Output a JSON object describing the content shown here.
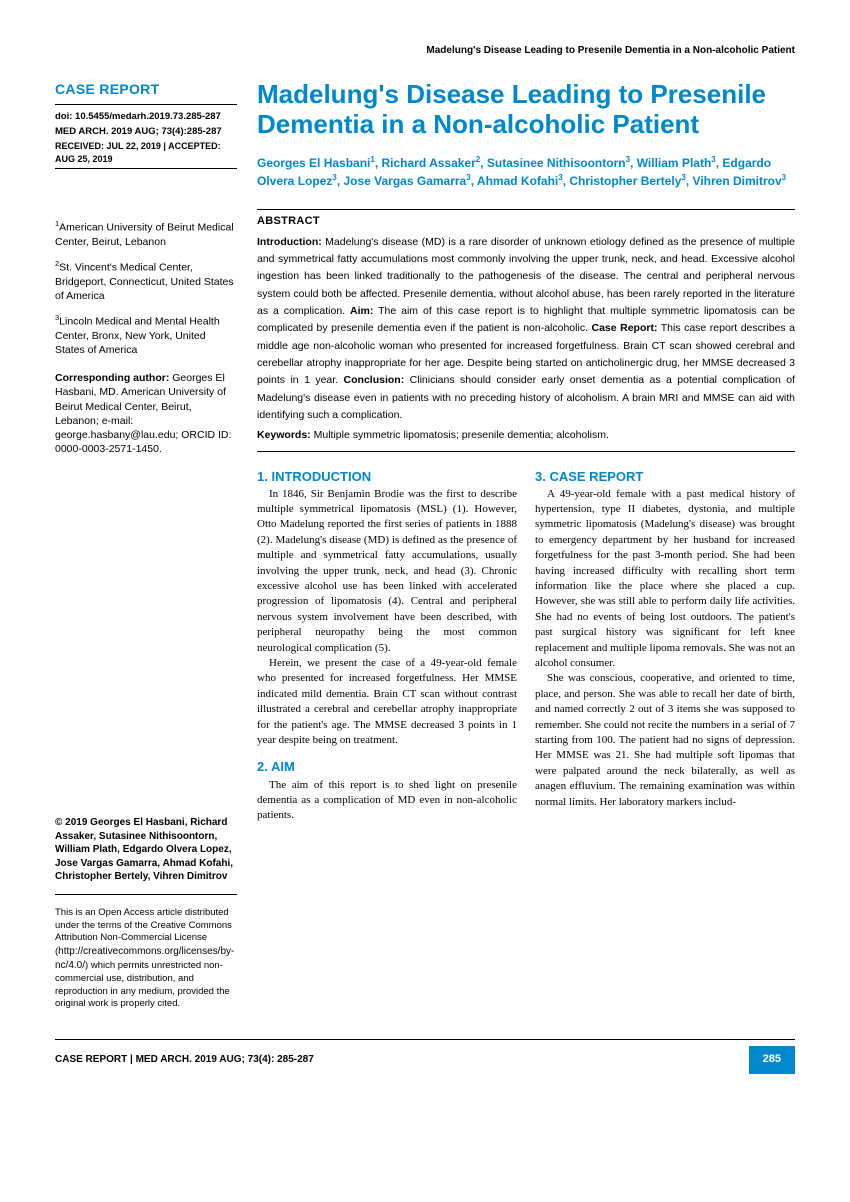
{
  "colors": {
    "accent": "#0088cc",
    "text": "#000000",
    "bg": "#ffffff"
  },
  "runningHead": "Madelung's Disease Leading to Presenile Dementia in a Non-alcoholic Patient",
  "sidebar": {
    "label": "CASE REPORT",
    "doi": "doi: 10.5455/medarh.2019.73.285-287",
    "pubinfo": "MED ARCH. 2019 AUG; 73(4):285-287",
    "dates": "RECEIVED: JUL 22, 2019 | ACCEPTED: AUG 25, 2019",
    "affiliations": [
      {
        "num": "1",
        "text": "American University of Beirut Medical Center, Beirut, Lebanon"
      },
      {
        "num": "2",
        "text": "St. Vincent's Medical Center, Bridgeport, Connecticut, United States of America"
      },
      {
        "num": "3",
        "text": "Lincoln Medical and Mental Health Center, Bronx, New York, United States of America"
      }
    ],
    "corresponding": {
      "label": "Corresponding author:",
      "text": " Georges El Hasbani, MD. American University of Beirut Medical Center, Beirut, Lebanon; e-mail: george.hasbany@lau.edu; ORCID ID: 0000-0003-2571-1450."
    },
    "copyright": "© 2019 Georges El Hasbani, Richard Assaker, Sutasinee Nithisoontorn, William Plath, Edgardo Olvera Lopez, Jose Vargas Gamarra, Ahmad Kofahi, Christopher Bertely, Vihren Dimitrov",
    "licensePre": "This is an Open Access article distributed under the terms of the Creative Commons Attribution Non-Commercial License (",
    "licenseUrl": "http://creativecommons.org/licenses/by-nc/4.0/",
    "licensePost": ") which permits unrestricted non-commercial use, distribution, and reproduction in any medium, provided the original work is properly cited."
  },
  "title": "Madelung's Disease Leading to Presenile Dementia in a Non-alcoholic Patient",
  "authorsHtmlParts": [
    {
      "name": "Georges El Hasbani",
      "sup": "1"
    },
    {
      "name": "Richard Assaker",
      "sup": "2"
    },
    {
      "name": "Sutasinee Nithisoontorn",
      "sup": "3"
    },
    {
      "name": "William Plath",
      "sup": "3"
    },
    {
      "name": "Edgardo Olvera Lopez",
      "sup": "3"
    },
    {
      "name": "Jose Vargas Gamarra",
      "sup": "3"
    },
    {
      "name": "Ahmad Kofahi",
      "sup": "3"
    },
    {
      "name": "Christopher Bertely",
      "sup": "3"
    },
    {
      "name": "Vihren Dimitrov",
      "sup": "3"
    }
  ],
  "abstract": {
    "heading": "ABSTRACT",
    "segments": [
      {
        "lead": "Introduction:",
        "text": " Madelung's disease (MD) is a rare disorder of unknown etiology defined as the presence of multiple and symmetrical fatty accumulations most commonly involving the upper trunk, neck, and head. Excessive alcohol ingestion has been linked traditionally to the pathogenesis of the disease. The central and peripheral nervous system could both be affected. Presenile dementia, without alcohol abuse, has been rarely reported in the literature as a complication. "
      },
      {
        "lead": "Aim:",
        "text": " The aim of this case report is to highlight that multiple symmetric lipomatosis can be complicated by presenile dementia even if the patient is non-alcoholic. "
      },
      {
        "lead": "Case Report:",
        "text": " This case report describes a middle age non-alcoholic woman who presented for increased forgetfulness. Brain CT scan showed cerebral and cerebellar atrophy inappropriate for her age. Despite being started on anticholinergic drug, her MMSE decreased 3 points in 1 year. "
      },
      {
        "lead": "Conclusion:",
        "text": " Clinicians should consider early onset dementia as a potential complication of Madelung's disease even in patients with no preceding history of alcoholism. A brain MRI and MMSE can aid with identifying such a complication."
      }
    ],
    "keywordsLabel": "Keywords:",
    "keywords": " Multiple symmetric lipomatosis; presenile dementia; alcoholism."
  },
  "sections": {
    "introHeading": "1. INTRODUCTION",
    "introP1": "In 1846, Sir Benjamin Brodie was the first to describe multiple symmetrical lipomatosis (MSL) (1). However, Otto Madelung reported the first series of patients in 1888 (2). Madelung's disease (MD) is defined as the presence of multiple and symmetrical fatty accumulations, usually involving the upper trunk, neck, and head (3). Chronic excessive alcohol use has been linked with accelerated progression of lipomatosis (4). Central and peripheral nervous system involvement have been described, with peripheral neuropathy being the most common neurological complication (5).",
    "introP2": "Herein, we present the case of a 49-year-old female who presented for increased forgetfulness. Her MMSE indicated mild dementia. Brain CT scan without contrast illustrated a cerebral and cerebellar atrophy inappropriate for the patient's age. The MMSE decreased 3 points in 1 year despite being on treatment.",
    "aimHeading": "2. AIM",
    "aimP1": "The aim of this report is to shed light on presenile dementia as a complication of MD even in non-alcoholic patients.",
    "caseHeading": "3. CASE REPORT",
    "caseP1": "A 49-year-old female with a past medical history of hypertension, type II diabetes, dystonia, and multiple symmetric lipomatosis (Madelung's disease) was brought to emergency department by her husband for increased forgetfulness for the past 3-month period. She had been having increased difficulty with recalling short term information like the place where she placed a cup. However, she was still able to perform daily life activities. She had no events of being lost outdoors. The patient's past surgical history was significant for left knee replacement and multiple lipoma removals. She was not an alcohol consumer.",
    "caseP2": "She was conscious, cooperative, and oriented to time, place, and person. She was able to recall her date of birth, and named correctly 2 out of 3 items she was supposed to remember. She could not recite the numbers in a serial of 7 starting from 100. The patient had no signs of depression. Her MMSE was 21. She had multiple soft lipomas that were palpated around the neck bilaterally, as well as anagen effluvium. The remaining examination was within normal limits. Her laboratory markers includ-"
  },
  "footer": {
    "left": "CASE REPORT | MED ARCH. 2019 AUG; 73(4): 285-287",
    "page": "285"
  }
}
